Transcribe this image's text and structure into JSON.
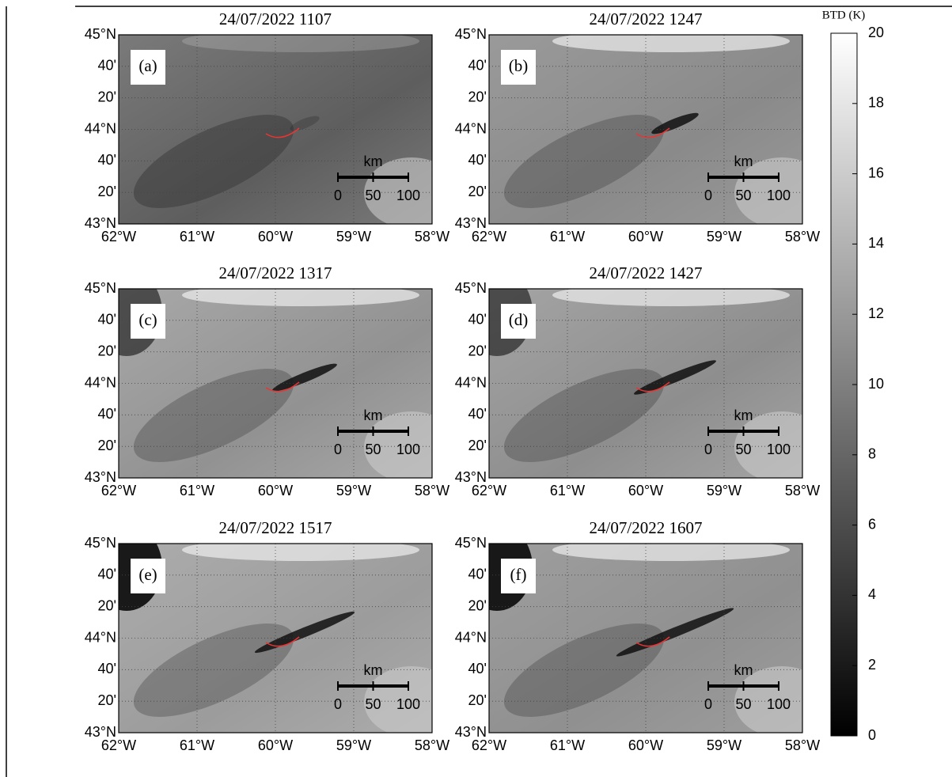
{
  "panels": [
    {
      "title": "24/07/2022 1107",
      "label": "(a)"
    },
    {
      "title": "24/07/2022 1247",
      "label": "(b)"
    },
    {
      "title": "24/07/2022 1317",
      "label": "(c)"
    },
    {
      "title": "24/07/2022 1427",
      "label": "(d)"
    },
    {
      "title": "24/07/2022 1517",
      "label": "(e)"
    },
    {
      "title": "24/07/2022 1607",
      "label": "(f)"
    }
  ],
  "axes": {
    "lat_ticks": [
      "45°N",
      "40'",
      "20'",
      "44°N",
      "40'",
      "20'",
      "43°N"
    ],
    "lon_ticks": [
      "62°W",
      "61°W",
      "60°W",
      "59°W",
      "58°W"
    ]
  },
  "scale_bar": {
    "unit": "km",
    "ticks": [
      0,
      50,
      100
    ]
  },
  "colorbar": {
    "label": "BTD (K)",
    "range": [
      0,
      20
    ],
    "ticks": [
      0,
      2,
      4,
      6,
      8,
      10,
      12,
      14,
      16,
      18,
      20
    ]
  }
}
